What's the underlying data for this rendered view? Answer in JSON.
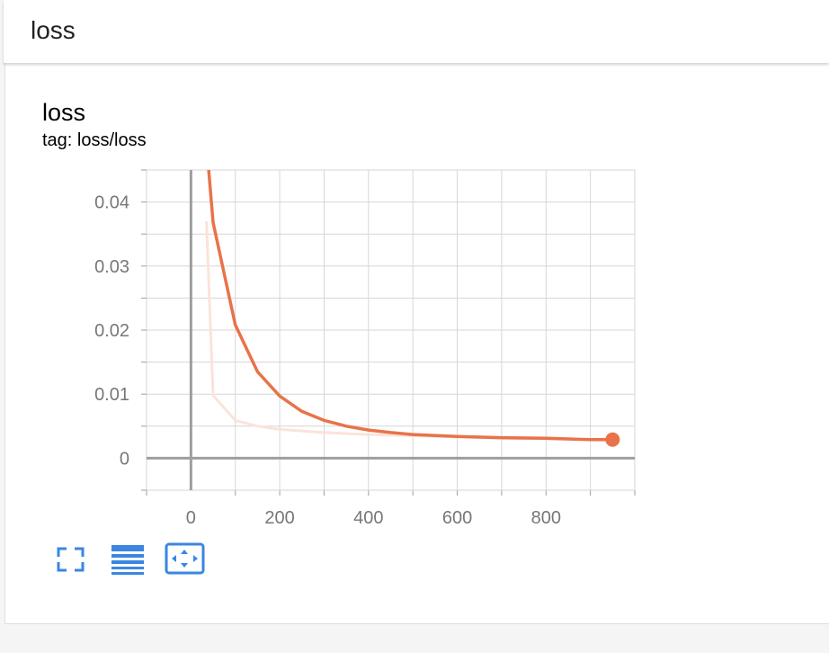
{
  "header": {
    "title": "loss"
  },
  "card": {
    "title": "loss",
    "tag": "tag: loss/loss"
  },
  "colors": {
    "series": "#e8734a",
    "series_raw": "#fbe3da",
    "toolbar_icon": "#3a86e2"
  },
  "toolbar": [
    {
      "icon": "fullscreen-icon"
    },
    {
      "icon": "log-scale-lines-icon"
    },
    {
      "icon": "fit-domain-icon"
    }
  ],
  "chart_data": {
    "type": "line",
    "xlim": [
      -100,
      1000
    ],
    "ylim": [
      -0.005,
      0.045
    ],
    "x_ticks": [
      "0",
      "200",
      "400",
      "600",
      "800"
    ],
    "x_tick_values": [
      0,
      200,
      400,
      600,
      800
    ],
    "y_ticks": [
      "0",
      "0.01",
      "0.02",
      "0.03",
      "0.04"
    ],
    "y_tick_values": [
      0,
      0.01,
      0.02,
      0.03,
      0.04
    ],
    "grid": true,
    "series": [
      {
        "role": "smoothed",
        "x": [
          40,
          50,
          100,
          150,
          200,
          250,
          300,
          350,
          400,
          450,
          500,
          600,
          700,
          800,
          900,
          950
        ],
        "values": [
          0.045,
          0.0368,
          0.0208,
          0.0135,
          0.0097,
          0.0073,
          0.0059,
          0.005,
          0.0044,
          0.004,
          0.0037,
          0.0034,
          0.0032,
          0.0031,
          0.0029,
          0.0029
        ]
      },
      {
        "role": "raw",
        "x": [
          35,
          50,
          100,
          150,
          200,
          300,
          400,
          500,
          600,
          700,
          800,
          900,
          950
        ],
        "values": [
          0.037,
          0.0098,
          0.0059,
          0.005,
          0.0045,
          0.004,
          0.0037,
          0.0035,
          0.0033,
          0.0031,
          0.003,
          0.0029,
          0.0029
        ]
      }
    ]
  }
}
